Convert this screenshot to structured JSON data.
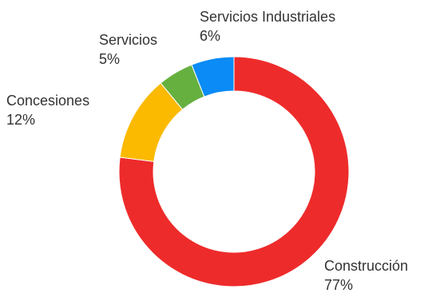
{
  "chart_data": {
    "type": "pie",
    "donut": true,
    "title": "",
    "start": "12 o'clock",
    "direction": "clockwise",
    "slices": [
      {
        "label": "Construcción",
        "percent_label": "77%",
        "value": 77,
        "color": "#EE2B2B"
      },
      {
        "label": "Concesiones",
        "percent_label": "12%",
        "value": 12,
        "color": "#FBBA00"
      },
      {
        "label": "Servicios",
        "percent_label": "5%",
        "value": 5,
        "color": "#66B040"
      },
      {
        "label": "Servicios Industriales",
        "percent_label": "6%",
        "value": 6,
        "color": "#0A8BF5"
      }
    ]
  }
}
